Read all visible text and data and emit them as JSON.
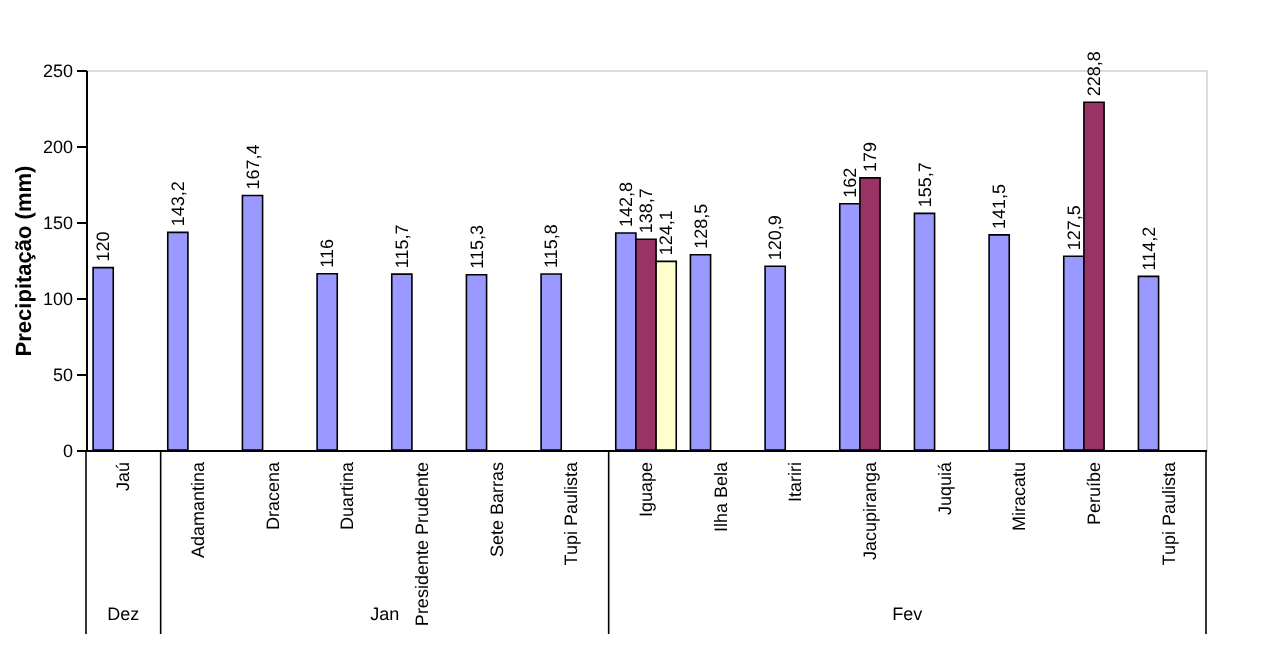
{
  "chart_data": {
    "type": "bar",
    "ylabel": "Precipitação (mm)",
    "categories": [
      "Jaú",
      "Adamantina",
      "Dracena",
      "Duartina",
      "Presidente Prudente",
      "Sete Barras",
      "Tupi Paulista",
      "Iguape",
      "Ilha Bela",
      "Itariri",
      "Jacupiranga",
      "Juquiá",
      "Miracatu",
      "Peruíbe",
      "Tupi Paulista"
    ],
    "series": [
      {
        "color": "#9999ff",
        "values": [
          120,
          143.2,
          167.4,
          116,
          115.7,
          115.3,
          115.8,
          142.8,
          128.5,
          120.9,
          162,
          155.7,
          141.5,
          127.5,
          114.2
        ],
        "value_labels": [
          "120",
          "143,2",
          "167,4",
          "116",
          "115,7",
          "115,3",
          "115,8",
          "142,8",
          "128,5",
          "120,9",
          "162",
          "155,7",
          "141,5",
          "127,5",
          "114,2"
        ]
      },
      {
        "color": "#993366",
        "values": [
          null,
          null,
          null,
          null,
          null,
          null,
          null,
          138.7,
          null,
          null,
          179,
          null,
          null,
          228.8,
          null
        ],
        "value_labels": [
          null,
          null,
          null,
          null,
          null,
          null,
          null,
          "138,7",
          null,
          null,
          "179",
          null,
          null,
          "228,8",
          null
        ]
      },
      {
        "color": "#ffffcc",
        "values": [
          null,
          null,
          null,
          null,
          null,
          null,
          null,
          124.1,
          null,
          null,
          null,
          null,
          null,
          null,
          null
        ],
        "value_labels": [
          null,
          null,
          null,
          null,
          null,
          null,
          null,
          "124,1",
          null,
          null,
          null,
          null,
          null,
          null,
          null
        ]
      }
    ],
    "ylim": [
      0,
      250
    ],
    "yticks": [
      0,
      50,
      100,
      150,
      200,
      250
    ],
    "annotations": [
      "Dez",
      "Jan",
      "Fev"
    ]
  }
}
